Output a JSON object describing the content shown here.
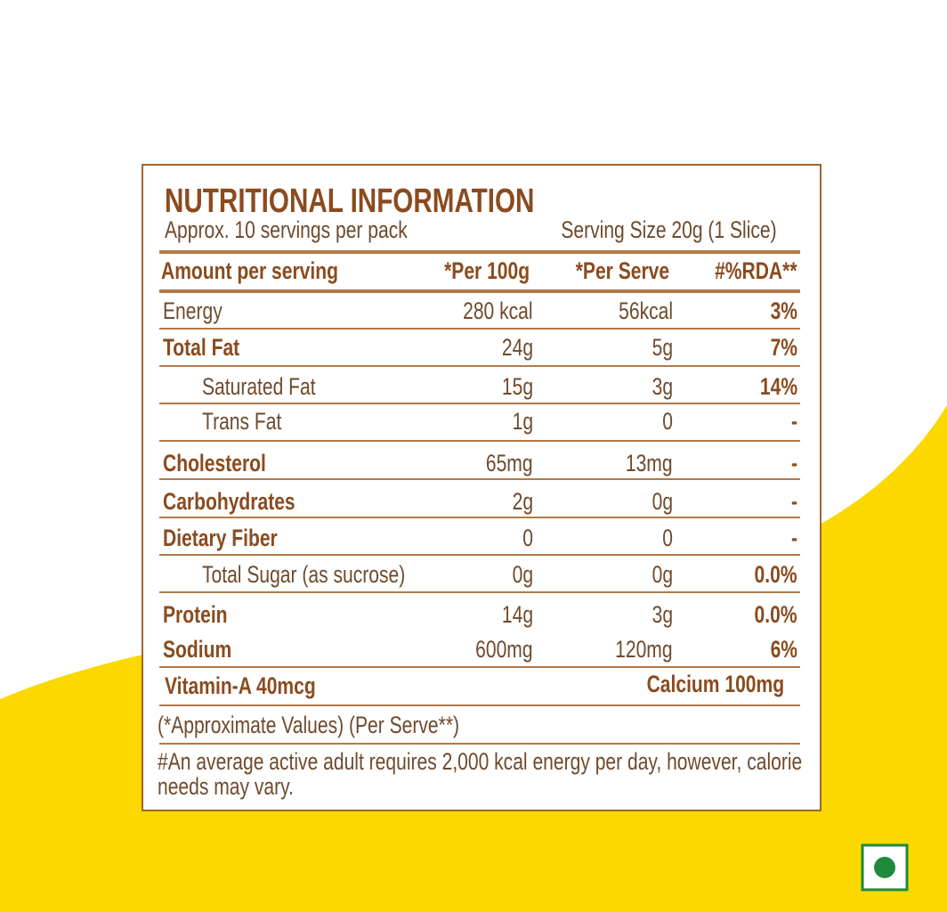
{
  "header": {
    "title": "NUTRITIONAL INFORMATION",
    "servings": "Approx. 10 servings per pack",
    "serving_size": "Serving Size 20g (1 Slice)"
  },
  "table": {
    "columns": [
      "Amount per serving",
      "*Per 100g",
      "*Per Serve",
      "#%RDA**"
    ],
    "rows": [
      [
        "Energy",
        "280 kcal",
        "56kcal",
        "3%"
      ],
      [
        "Total Fat",
        "24g",
        "5g",
        "7%"
      ],
      [
        "Saturated Fat",
        "15g",
        "3g",
        "14%"
      ],
      [
        "Trans Fat",
        "1g",
        "0",
        "-"
      ],
      [
        "Cholesterol",
        "65mg",
        "13mg",
        "-"
      ],
      [
        "Carbohydrates",
        "2g",
        "0g",
        "-"
      ],
      [
        "Dietary Fiber",
        "0",
        "0",
        "-"
      ],
      [
        "Total Sugar (as sucrose)",
        "0g",
        "0g",
        "0.0%"
      ],
      [
        "Protein",
        "14g",
        "3g",
        "0.0%"
      ],
      [
        "Sodium",
        "600mg",
        "120mg",
        "6%"
      ]
    ],
    "extras": [
      "Vitamin-A 40mcg",
      "Calcium 100mg"
    ]
  },
  "footnotes": [
    "(*Approximate Values) (Per Serve**)",
    "#An average active adult requires 2,000 kcal energy per day, however, calorie needs may vary."
  ]
}
